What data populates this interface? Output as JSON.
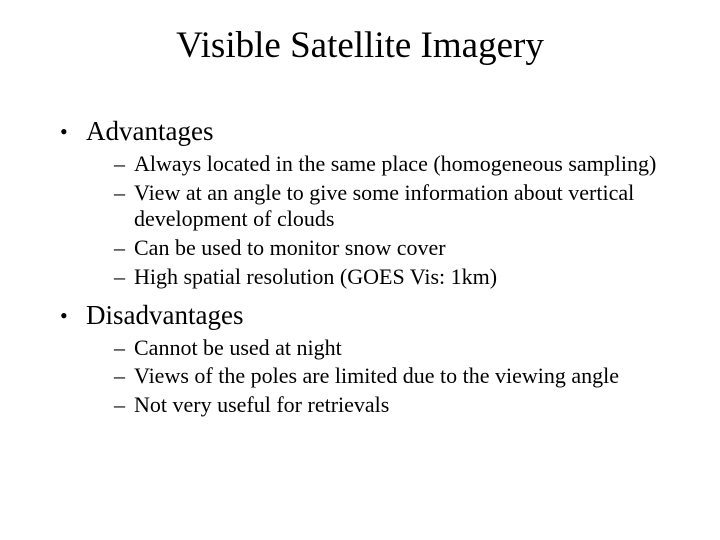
{
  "title": "Visible Satellite Imagery",
  "sections": [
    {
      "heading": "Advantages",
      "items": [
        "Always located in the same place (homogeneous sampling)",
        "View at an angle to give some information about vertical development of clouds",
        "Can be used to monitor snow cover",
        "High spatial resolution (GOES Vis: 1km)"
      ]
    },
    {
      "heading": "Disadvantages",
      "items": [
        "Cannot be used at night",
        "Views of the poles are limited due to the viewing angle",
        "Not very useful for retrievals"
      ]
    }
  ],
  "style": {
    "background_color": "#ffffff",
    "text_color": "#000000",
    "font_family": "Times New Roman",
    "title_fontsize_pt": 28,
    "level1_fontsize_pt": 20,
    "level2_fontsize_pt": 17,
    "level1_bullet": "•",
    "level2_bullet": "–"
  }
}
